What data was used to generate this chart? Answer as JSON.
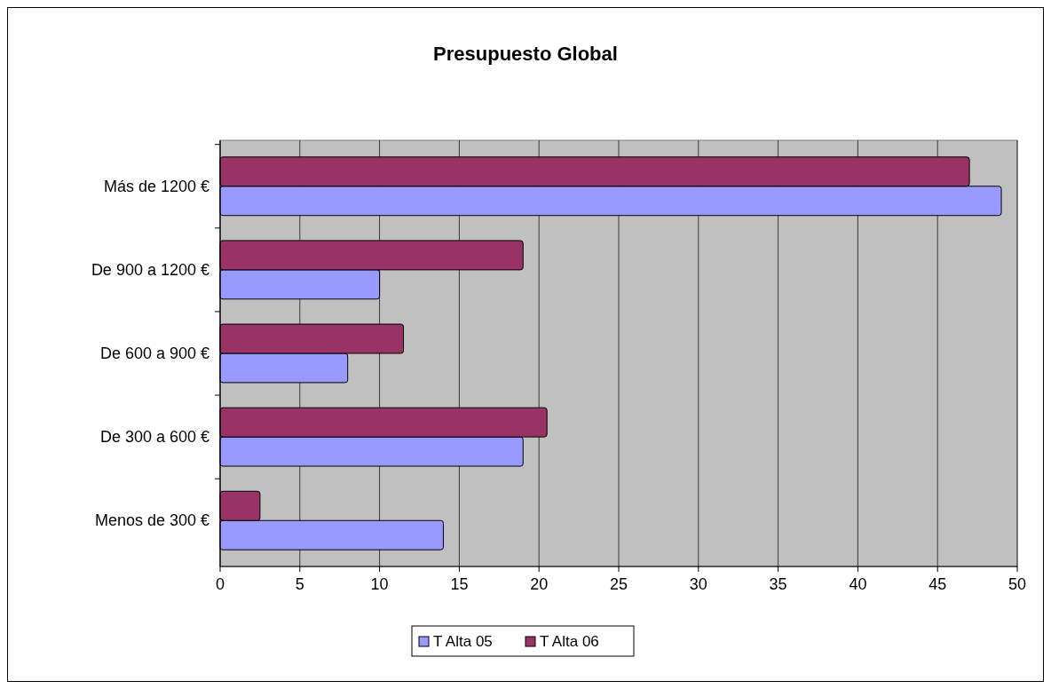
{
  "chart_data": {
    "type": "bar",
    "orientation": "horizontal",
    "title": "Presupuesto Global",
    "categories": [
      "Más de 1200 €",
      "De 900 a 1200 €",
      "De 600 a 900 €",
      "De 300 a 600 €",
      "Menos de 300 €"
    ],
    "series": [
      {
        "name": "T Alta 05",
        "color": "#9999ff",
        "values": [
          49,
          10,
          8,
          19,
          14
        ]
      },
      {
        "name": "T Alta 06",
        "color": "#993366",
        "values": [
          47,
          19,
          11.5,
          20.5,
          2.5
        ]
      }
    ],
    "xlim": [
      0,
      50
    ],
    "xticks": [
      0,
      5,
      10,
      15,
      20,
      25,
      30,
      35,
      40,
      45,
      50
    ],
    "grid": "x",
    "legend": "bottom"
  }
}
